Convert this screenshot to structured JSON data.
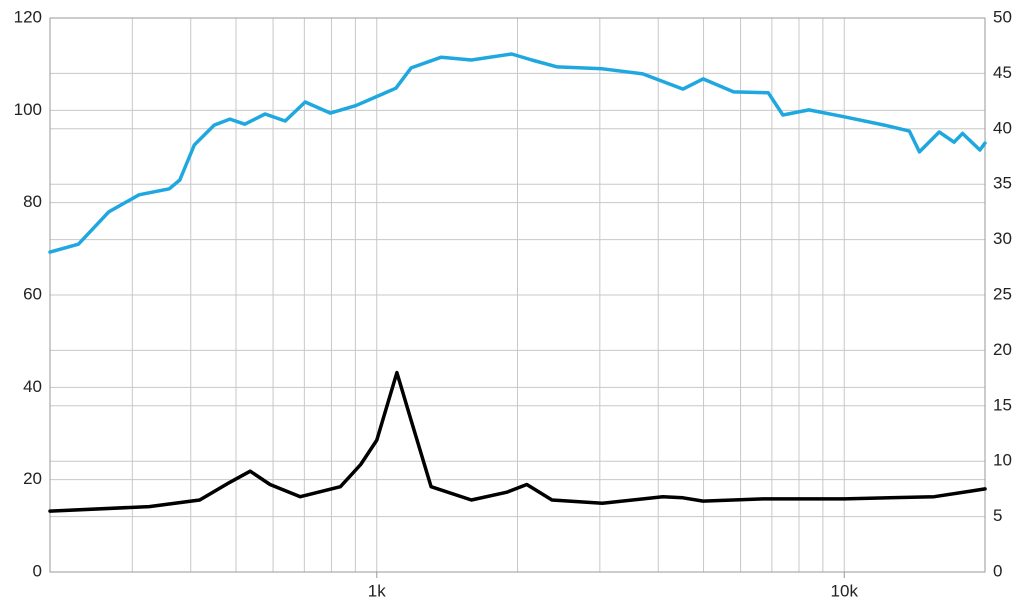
{
  "chart_data": {
    "type": "line",
    "x_scale": "log",
    "xlim": [
      200,
      20000
    ],
    "xticks": [
      {
        "value": 1000,
        "label": "1k"
      },
      {
        "value": 10000,
        "label": "10k"
      }
    ],
    "xgrid": [
      200,
      300,
      400,
      500,
      600,
      700,
      800,
      900,
      1000,
      2000,
      3000,
      4000,
      5000,
      6000,
      7000,
      8000,
      9000,
      10000,
      20000
    ],
    "ylim": [
      0,
      120
    ],
    "yticks": [
      0,
      20,
      40,
      60,
      80,
      100,
      120
    ],
    "y2lim": [
      0,
      50
    ],
    "y2ticks": [
      0,
      5,
      10,
      15,
      20,
      25,
      30,
      35,
      40,
      45,
      50
    ],
    "grid": true,
    "series": [
      {
        "color": "#1fa8e0",
        "x": [
          200,
          230,
          267,
          310,
          360,
          379,
          407,
          449,
          485,
          522,
          577,
          637,
          703,
          796,
          901,
          1000,
          1099,
          1184,
          1374,
          1594,
          1944,
          2146,
          2433,
          3038,
          3707,
          4520,
          4989,
          5798,
          6877,
          7390,
          8400,
          10000,
          12180,
          13780,
          14480,
          15960,
          17180,
          17900,
          19500,
          20000
        ],
        "values": [
          69.3,
          71,
          78,
          81.7,
          83,
          84.9,
          92.5,
          96.8,
          98.1,
          97,
          99.2,
          97.7,
          101.8,
          99.4,
          101,
          103,
          104.8,
          109.2,
          111.5,
          110.9,
          112.2,
          110.9,
          109.4,
          109,
          107.9,
          104.6,
          106.8,
          104,
          103.8,
          99,
          100.1,
          98.6,
          96.8,
          95.5,
          91,
          95.3,
          93.1,
          95,
          91.4,
          92.9
        ]
      },
      {
        "color": "#000000",
        "axis": "y2",
        "x": [
          200,
          326,
          418,
          485,
          536,
          591,
          686,
          836,
          924,
          1000,
          1104,
          1184,
          1307,
          1594,
          1898,
          2094,
          2370,
          3038,
          4091,
          4520,
          4989,
          6711,
          10000,
          15570,
          18640,
          20000
        ],
        "values": [
          5.5,
          5.9,
          6.5,
          8.1,
          9.1,
          7.9,
          6.8,
          7.7,
          9.7,
          11.9,
          18.0,
          13.7,
          7.7,
          6.5,
          7.2,
          7.9,
          6.5,
          6.2,
          6.8,
          6.7,
          6.4,
          6.6,
          6.6,
          6.8,
          7.3,
          7.5
        ]
      }
    ]
  }
}
